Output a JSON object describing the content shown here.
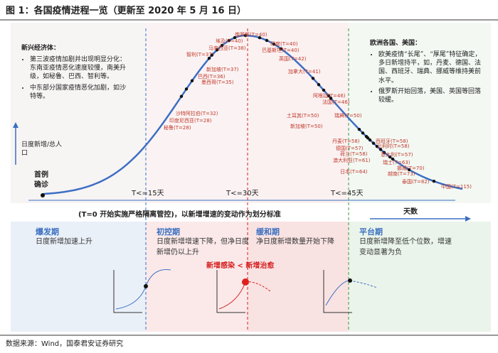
{
  "header": {
    "title": "图 1：各国疫情进程一览（更新至 2020 年 5 月 16 日）"
  },
  "left_note": {
    "heading": "新兴经济体：",
    "bullets": [
      "第三波疫情加剧并出现明显分化：东南亚疫情恶化速度较慢，南美升级，如秘鲁、巴西、智利等。",
      "中东部分国家疫情恶化加剧，如沙特等。"
    ]
  },
  "right_note": {
    "heading": "欧洲各国、美国：",
    "bullets": [
      "欧美疫情“长尾”、“厚尾”特征确定，多日新增持平，如，丹麦、德国、法国、西班牙、瑞典、挪威等维持美前水平。",
      "俄罗斯开始回落，美国、英国等回落较缓。"
    ]
  },
  "axis": {
    "y_label": "日度新增/总人口",
    "x_label": "天数",
    "start_label": "首例确诊",
    "markers": [
      "T<=15天",
      "T<=30天",
      "T<=45天"
    ]
  },
  "countries": [
    "俄罗斯(T=40)",
    "埃及(T=40)",
    "印度(T=40)",
    "马来西亚(T=38)",
    "巴基斯坦(T=40)",
    "智利(T=37)",
    "英国(T=42)",
    "新加坡(T=37)",
    "加拿大(T=41)",
    "巴西(T=36)",
    "墨西哥(T=35)",
    "沙特阿拉伯(T=32)",
    "印度尼西亚(T=28)",
    "秘鲁(T=28)",
    "阿根廷(T=46)",
    "法国(T=46)",
    "土耳其(T=50)",
    "瑞典(T=50)",
    "新加坡(T=50)",
    "丹麦(T=58)",
    "西班牙(T=58)",
    "德国(T=57)",
    "比利时(T=58)",
    "荷兰(T=58)",
    "意大利(T=57)",
    "澳大利亚(T=61)",
    "瑞士(T=63)",
    "日本(T=64)",
    "挪威(T=70)",
    "越南(T=73)",
    "泰国(T=82)",
    "中国(T=115)"
  ],
  "caption": "(T=0 开始实施严格隔离管控)，以新增增速的变动作为划分标准",
  "phases": [
    {
      "name": "爆发期",
      "desc": "日度新增加速上升"
    },
    {
      "name": "初控期",
      "desc": "日度新增增速下降，但净日度新增仍以上升"
    },
    {
      "name": "缓和期",
      "desc": "净日度新增数量开始下降"
    },
    {
      "name": "平台期",
      "desc": "日度新增降至低个位数，增速变动显著为负"
    }
  ],
  "turning_label": "新增感染 < 新增治愈",
  "source": "数据来源：Wind，国泰君安证券研究"
}
